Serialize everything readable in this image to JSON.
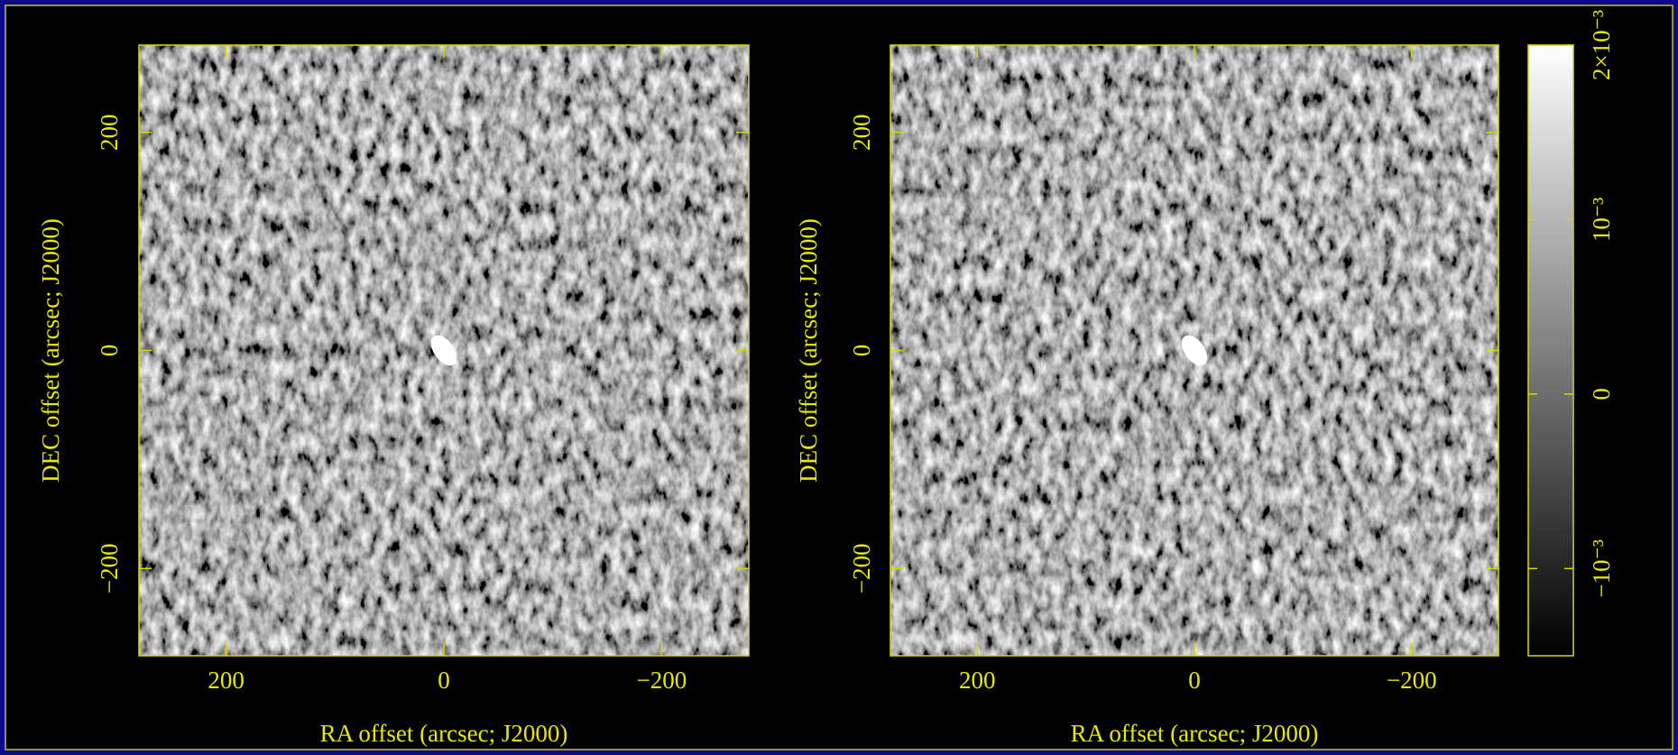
{
  "chart_data": [
    {
      "type": "image",
      "xlabel": "RA offset (arcsec; J2000)",
      "ylabel": "DEC offset (arcsec; J2000)",
      "xlim": [
        280,
        -280
      ],
      "ylim": [
        -280,
        280
      ],
      "xticks": [
        200,
        0,
        {
          "value": -200,
          "label": "−200"
        }
      ],
      "yticks": [
        {
          "value": -200,
          "label": "−200"
        },
        0,
        200
      ]
    },
    {
      "type": "image",
      "xlabel": "RA offset (arcsec; J2000)",
      "ylabel": "DEC offset (arcsec; J2000)",
      "xlim": [
        280,
        -280
      ],
      "ylim": [
        -280,
        280
      ],
      "xticks": [
        200,
        0,
        {
          "value": -200,
          "label": "−200"
        }
      ],
      "yticks": [
        {
          "value": -200,
          "label": "−200"
        },
        0,
        200
      ]
    },
    {
      "type": "colorbar",
      "ylim": [
        -0.0015,
        0.002
      ],
      "yticks": [
        {
          "value": -0.001,
          "label": "−10⁻³"
        },
        0,
        {
          "value": 0.001,
          "label": "10⁻³"
        },
        {
          "value": 0.002,
          "label": "2×10⁻³"
        }
      ]
    }
  ]
}
